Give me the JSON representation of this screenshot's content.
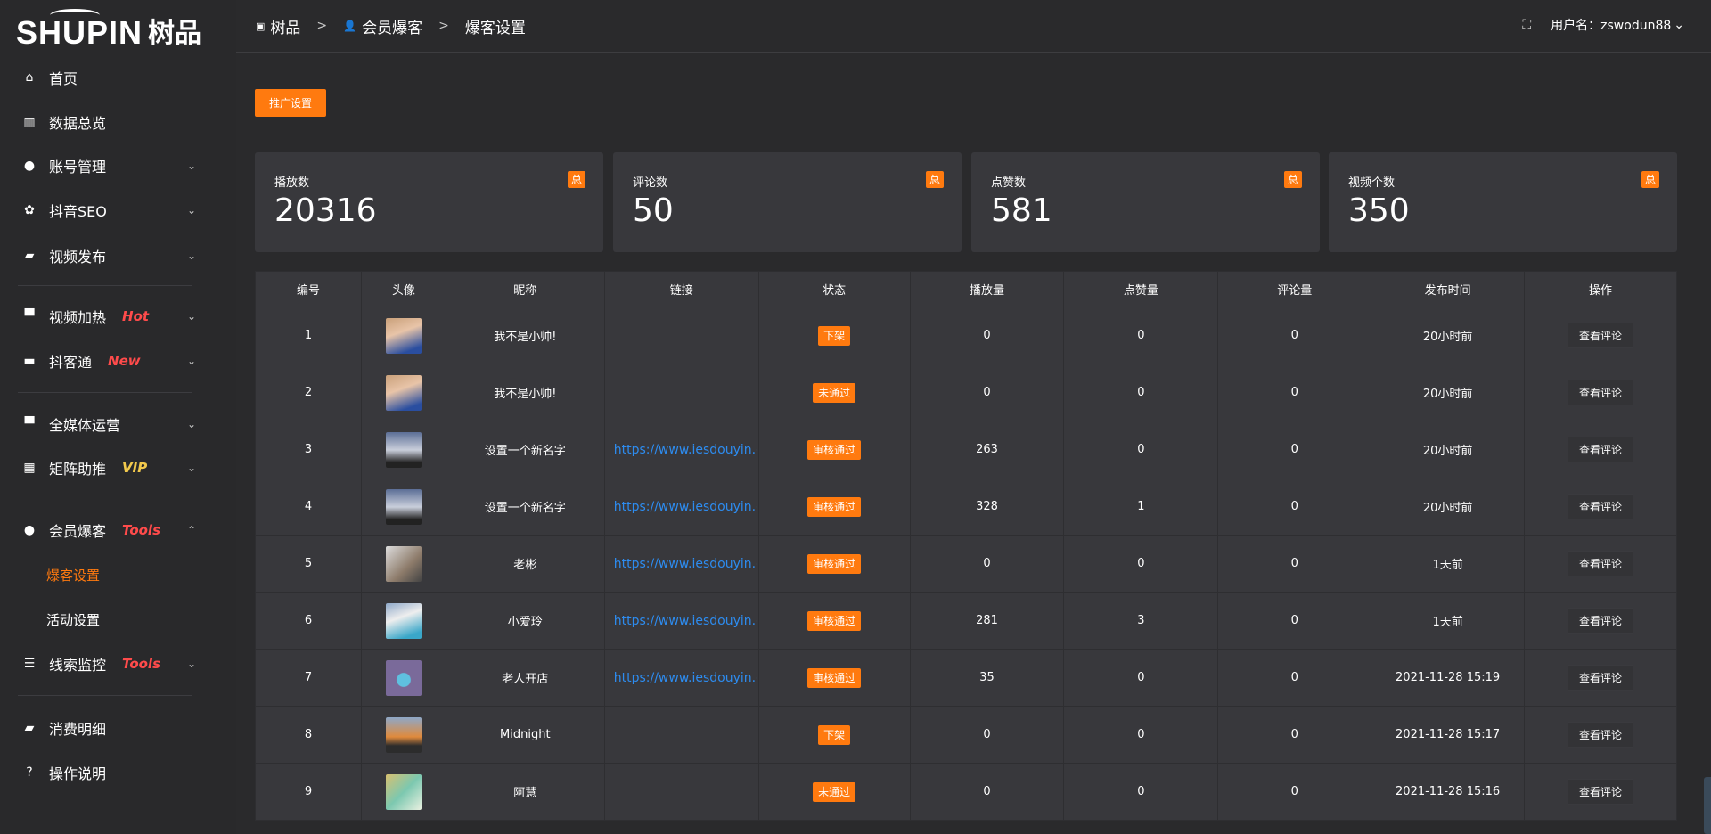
{
  "logo": {
    "en": "SHUPIN",
    "cn": "树品"
  },
  "sidebar": {
    "items": [
      {
        "label": "首页",
        "icon": "home-icon",
        "glyph": "⌂"
      },
      {
        "label": "数据总览",
        "icon": "bar-chart-icon",
        "glyph": "▥"
      },
      {
        "label": "账号管理",
        "icon": "user-icon",
        "glyph": "●",
        "chev": "⌄"
      },
      {
        "label": "抖音SEO",
        "icon": "gear-icon",
        "glyph": "✿",
        "chev": "⌄"
      },
      {
        "label": "视频发布",
        "icon": "camera-icon",
        "glyph": "▰",
        "chev": "⌄"
      },
      {
        "label": "视频加热",
        "icon": "billboard-icon",
        "glyph": "▀",
        "tag": "Hot",
        "chev": "⌄"
      },
      {
        "label": "抖客通",
        "icon": "chat-icon",
        "glyph": "▬",
        "tag": "New",
        "chev": "⌄"
      },
      {
        "label": "全媒体运营",
        "icon": "monitor-icon",
        "glyph": "▀",
        "chev": "⌄"
      },
      {
        "label": "矩阵助推",
        "icon": "grid-icon",
        "glyph": "▦",
        "tag": "VIP",
        "chev": "⌄"
      },
      {
        "label": "会员爆客",
        "icon": "member-icon",
        "glyph": "●",
        "tag": "Tools",
        "chev": "⌃"
      },
      {
        "label": "线索监控",
        "icon": "sliders-icon",
        "glyph": "☰",
        "tag": "Tools",
        "chev": "⌄"
      },
      {
        "label": "消费明细",
        "icon": "wallet-icon",
        "glyph": "▰"
      },
      {
        "label": "操作说明",
        "icon": "help-icon",
        "glyph": "?"
      }
    ],
    "sub": [
      {
        "label": "爆客设置",
        "active": true
      },
      {
        "label": "活动设置"
      }
    ]
  },
  "breadcrumb": [
    {
      "label": "树品",
      "icon": "chart-icon"
    },
    {
      "label": "会员爆客",
      "icon": "user-icon"
    },
    {
      "label": "爆客设置"
    }
  ],
  "header": {
    "user": "用户名：zswodun88"
  },
  "promo_button": "推广设置",
  "stats": [
    {
      "label": "播放数",
      "value": "20316",
      "badge": "总"
    },
    {
      "label": "评论数",
      "value": "50",
      "badge": "总"
    },
    {
      "label": "点赞数",
      "value": "581",
      "badge": "总"
    },
    {
      "label": "视频个数",
      "value": "350",
      "badge": "总"
    }
  ],
  "table": {
    "headers": [
      "编号",
      "头像",
      "昵称",
      "链接",
      "状态",
      "播放量",
      "点赞量",
      "评论量",
      "发布时间",
      "操作"
    ],
    "action": "查看评论",
    "rows": [
      {
        "id": "1",
        "name": "我不是小帅!",
        "link": "",
        "status": "下架",
        "plays": "0",
        "likes": "0",
        "comments": "0",
        "time": "20小时前"
      },
      {
        "id": "2",
        "name": "我不是小帅!",
        "link": "",
        "status": "未通过",
        "plays": "0",
        "likes": "0",
        "comments": "0",
        "time": "20小时前"
      },
      {
        "id": "3",
        "name": "设置一个新名字",
        "link": "https://www.iesdouyin.c",
        "status": "审核通过",
        "plays": "263",
        "likes": "0",
        "comments": "0",
        "time": "20小时前"
      },
      {
        "id": "4",
        "name": "设置一个新名字",
        "link": "https://www.iesdouyin.c",
        "status": "审核通过",
        "plays": "328",
        "likes": "1",
        "comments": "0",
        "time": "20小时前"
      },
      {
        "id": "5",
        "name": "老彬",
        "link": "https://www.iesdouyin.c",
        "status": "审核通过",
        "plays": "0",
        "likes": "0",
        "comments": "0",
        "time": "1天前"
      },
      {
        "id": "6",
        "name": "小爱玲",
        "link": "https://www.iesdouyin.c",
        "status": "审核通过",
        "plays": "281",
        "likes": "3",
        "comments": "0",
        "time": "1天前"
      },
      {
        "id": "7",
        "name": "老人开店",
        "link": "https://www.iesdouyin.c",
        "status": "审核通过",
        "plays": "35",
        "likes": "0",
        "comments": "0",
        "time": "2021-11-28 15:19"
      },
      {
        "id": "8",
        "name": "Midnight",
        "link": "",
        "status": "下架",
        "plays": "0",
        "likes": "0",
        "comments": "0",
        "time": "2021-11-28 15:17"
      },
      {
        "id": "9",
        "name": "阿慧",
        "link": "",
        "status": "未通过",
        "plays": "0",
        "likes": "0",
        "comments": "0",
        "time": "2021-11-28 15:16"
      }
    ]
  },
  "colors": {
    "accent": "#ff7a0f",
    "link": "#2d8cf0",
    "tag_red": "#ff4b4b",
    "tag_vip": "#f2c94c"
  }
}
